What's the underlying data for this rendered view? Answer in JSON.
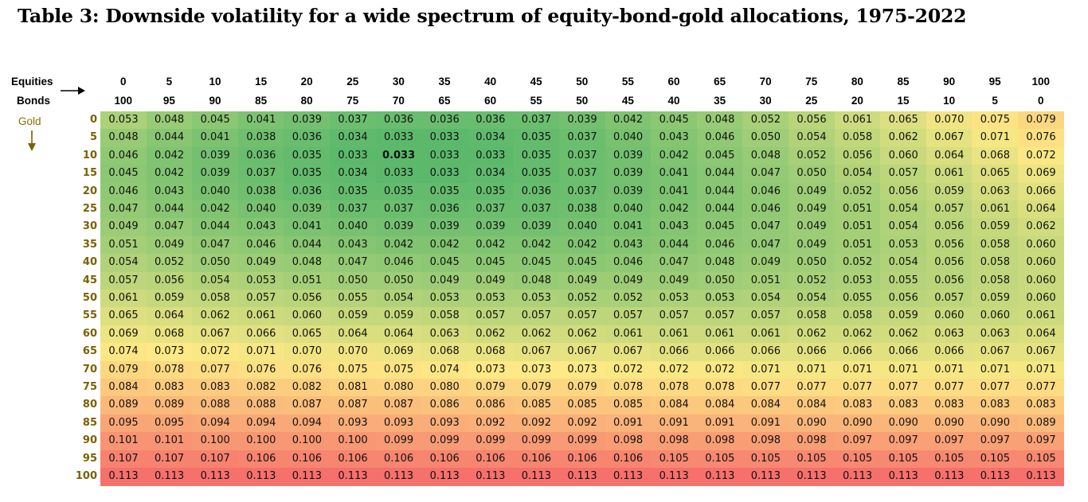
{
  "title": "Table 3: Downside volatility for a wide spectrum of equity-bond-gold allocations, 1975-2022",
  "chart_data": {
    "type": "heatmap",
    "row_labels": {
      "equities": "Equities",
      "bonds": "Bonds",
      "gold": "Gold"
    },
    "equities": [
      "0",
      "5",
      "10",
      "15",
      "20",
      "25",
      "30",
      "35",
      "40",
      "45",
      "50",
      "55",
      "60",
      "65",
      "70",
      "75",
      "80",
      "85",
      "90",
      "95",
      "100"
    ],
    "bonds": [
      "100",
      "95",
      "90",
      "85",
      "80",
      "75",
      "70",
      "65",
      "60",
      "55",
      "50",
      "45",
      "40",
      "35",
      "30",
      "25",
      "20",
      "15",
      "10",
      "5",
      "0"
    ],
    "gold": [
      "0",
      "5",
      "10",
      "15",
      "20",
      "25",
      "30",
      "35",
      "40",
      "45",
      "50",
      "55",
      "60",
      "65",
      "70",
      "75",
      "80",
      "85",
      "90",
      "95",
      "100"
    ],
    "highlight": {
      "row": 2,
      "col": 6
    },
    "color_scale": {
      "low": "#5cb96c",
      "mid": "#fde985",
      "high": "#f6706c"
    },
    "values": [
      [
        "0.053",
        "0.048",
        "0.045",
        "0.041",
        "0.039",
        "0.037",
        "0.036",
        "0.036",
        "0.036",
        "0.037",
        "0.039",
        "0.042",
        "0.045",
        "0.048",
        "0.052",
        "0.056",
        "0.061",
        "0.065",
        "0.070",
        "0.075",
        "0.079"
      ],
      [
        "0.048",
        "0.044",
        "0.041",
        "0.038",
        "0.036",
        "0.034",
        "0.033",
        "0.033",
        "0.034",
        "0.035",
        "0.037",
        "0.040",
        "0.043",
        "0.046",
        "0.050",
        "0.054",
        "0.058",
        "0.062",
        "0.067",
        "0.071",
        "0.076"
      ],
      [
        "0.046",
        "0.042",
        "0.039",
        "0.036",
        "0.035",
        "0.033",
        "0.033",
        "0.033",
        "0.033",
        "0.035",
        "0.037",
        "0.039",
        "0.042",
        "0.045",
        "0.048",
        "0.052",
        "0.056",
        "0.060",
        "0.064",
        "0.068",
        "0.072"
      ],
      [
        "0.045",
        "0.042",
        "0.039",
        "0.037",
        "0.035",
        "0.034",
        "0.033",
        "0.033",
        "0.034",
        "0.035",
        "0.037",
        "0.039",
        "0.041",
        "0.044",
        "0.047",
        "0.050",
        "0.054",
        "0.057",
        "0.061",
        "0.065",
        "0.069"
      ],
      [
        "0.046",
        "0.043",
        "0.040",
        "0.038",
        "0.036",
        "0.035",
        "0.035",
        "0.035",
        "0.035",
        "0.036",
        "0.037",
        "0.039",
        "0.041",
        "0.044",
        "0.046",
        "0.049",
        "0.052",
        "0.056",
        "0.059",
        "0.063",
        "0.066"
      ],
      [
        "0.047",
        "0.044",
        "0.042",
        "0.040",
        "0.039",
        "0.037",
        "0.037",
        "0.036",
        "0.037",
        "0.037",
        "0.038",
        "0.040",
        "0.042",
        "0.044",
        "0.046",
        "0.049",
        "0.051",
        "0.054",
        "0.057",
        "0.061",
        "0.064"
      ],
      [
        "0.049",
        "0.047",
        "0.044",
        "0.043",
        "0.041",
        "0.040",
        "0.039",
        "0.039",
        "0.039",
        "0.039",
        "0.040",
        "0.041",
        "0.043",
        "0.045",
        "0.047",
        "0.049",
        "0.051",
        "0.054",
        "0.056",
        "0.059",
        "0.062"
      ],
      [
        "0.051",
        "0.049",
        "0.047",
        "0.046",
        "0.044",
        "0.043",
        "0.042",
        "0.042",
        "0.042",
        "0.042",
        "0.042",
        "0.043",
        "0.044",
        "0.046",
        "0.047",
        "0.049",
        "0.051",
        "0.053",
        "0.056",
        "0.058",
        "0.060"
      ],
      [
        "0.054",
        "0.052",
        "0.050",
        "0.049",
        "0.048",
        "0.047",
        "0.046",
        "0.045",
        "0.045",
        "0.045",
        "0.045",
        "0.046",
        "0.047",
        "0.048",
        "0.049",
        "0.050",
        "0.052",
        "0.054",
        "0.056",
        "0.058",
        "0.060"
      ],
      [
        "0.057",
        "0.056",
        "0.054",
        "0.053",
        "0.051",
        "0.050",
        "0.050",
        "0.049",
        "0.049",
        "0.048",
        "0.049",
        "0.049",
        "0.049",
        "0.050",
        "0.051",
        "0.052",
        "0.053",
        "0.055",
        "0.056",
        "0.058",
        "0.060"
      ],
      [
        "0.061",
        "0.059",
        "0.058",
        "0.057",
        "0.056",
        "0.055",
        "0.054",
        "0.053",
        "0.053",
        "0.053",
        "0.052",
        "0.052",
        "0.053",
        "0.053",
        "0.054",
        "0.054",
        "0.055",
        "0.056",
        "0.057",
        "0.059",
        "0.060"
      ],
      [
        "0.065",
        "0.064",
        "0.062",
        "0.061",
        "0.060",
        "0.059",
        "0.059",
        "0.058",
        "0.057",
        "0.057",
        "0.057",
        "0.057",
        "0.057",
        "0.057",
        "0.057",
        "0.058",
        "0.058",
        "0.059",
        "0.060",
        "0.060",
        "0.061"
      ],
      [
        "0.069",
        "0.068",
        "0.067",
        "0.066",
        "0.065",
        "0.064",
        "0.064",
        "0.063",
        "0.062",
        "0.062",
        "0.062",
        "0.061",
        "0.061",
        "0.061",
        "0.061",
        "0.062",
        "0.062",
        "0.062",
        "0.063",
        "0.063",
        "0.064"
      ],
      [
        "0.074",
        "0.073",
        "0.072",
        "0.071",
        "0.070",
        "0.070",
        "0.069",
        "0.068",
        "0.068",
        "0.067",
        "0.067",
        "0.067",
        "0.066",
        "0.066",
        "0.066",
        "0.066",
        "0.066",
        "0.066",
        "0.066",
        "0.067",
        "0.067"
      ],
      [
        "0.079",
        "0.078",
        "0.077",
        "0.076",
        "0.076",
        "0.075",
        "0.075",
        "0.074",
        "0.073",
        "0.073",
        "0.073",
        "0.072",
        "0.072",
        "0.072",
        "0.071",
        "0.071",
        "0.071",
        "0.071",
        "0.071",
        "0.071",
        "0.071"
      ],
      [
        "0.084",
        "0.083",
        "0.083",
        "0.082",
        "0.082",
        "0.081",
        "0.080",
        "0.080",
        "0.079",
        "0.079",
        "0.079",
        "0.078",
        "0.078",
        "0.078",
        "0.077",
        "0.077",
        "0.077",
        "0.077",
        "0.077",
        "0.077",
        "0.077"
      ],
      [
        "0.089",
        "0.089",
        "0.088",
        "0.088",
        "0.087",
        "0.087",
        "0.087",
        "0.086",
        "0.086",
        "0.085",
        "0.085",
        "0.085",
        "0.084",
        "0.084",
        "0.084",
        "0.084",
        "0.083",
        "0.083",
        "0.083",
        "0.083",
        "0.083"
      ],
      [
        "0.095",
        "0.095",
        "0.094",
        "0.094",
        "0.094",
        "0.093",
        "0.093",
        "0.093",
        "0.092",
        "0.092",
        "0.092",
        "0.091",
        "0.091",
        "0.091",
        "0.091",
        "0.090",
        "0.090",
        "0.090",
        "0.090",
        "0.090",
        "0.089"
      ],
      [
        "0.101",
        "0.101",
        "0.100",
        "0.100",
        "0.100",
        "0.100",
        "0.099",
        "0.099",
        "0.099",
        "0.099",
        "0.099",
        "0.098",
        "0.098",
        "0.098",
        "0.098",
        "0.098",
        "0.097",
        "0.097",
        "0.097",
        "0.097",
        "0.097"
      ],
      [
        "0.107",
        "0.107",
        "0.107",
        "0.106",
        "0.106",
        "0.106",
        "0.106",
        "0.106",
        "0.106",
        "0.106",
        "0.106",
        "0.106",
        "0.105",
        "0.105",
        "0.105",
        "0.105",
        "0.105",
        "0.105",
        "0.105",
        "0.105",
        "0.105"
      ],
      [
        "0.113",
        "0.113",
        "0.113",
        "0.113",
        "0.113",
        "0.113",
        "0.113",
        "0.113",
        "0.113",
        "0.113",
        "0.113",
        "0.113",
        "0.113",
        "0.113",
        "0.113",
        "0.113",
        "0.113",
        "0.113",
        "0.113",
        "0.113",
        "0.113"
      ]
    ]
  }
}
